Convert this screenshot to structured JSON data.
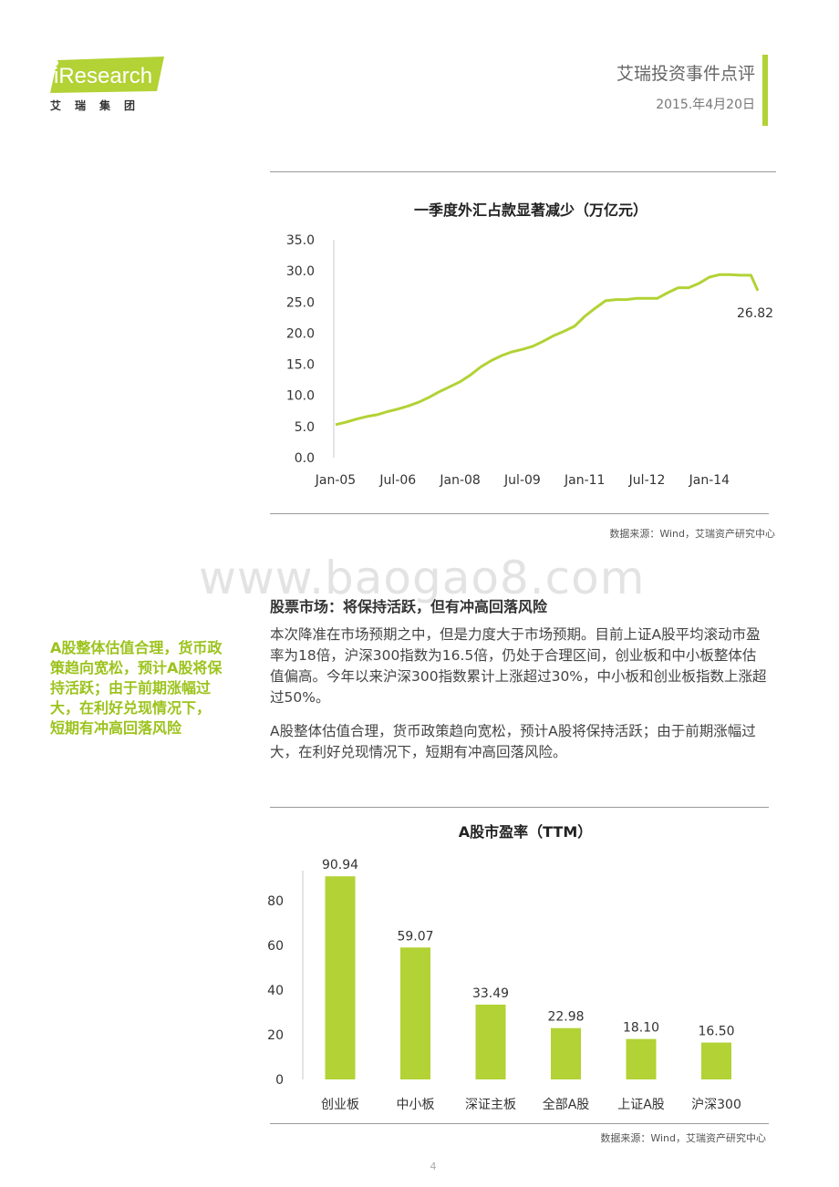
{
  "header": {
    "logo_text": "iResearch",
    "logo_sub": "艾瑞集团",
    "doc_title": "艾瑞投资事件点评",
    "date": "2015.年4月20日"
  },
  "watermark": "www.baogao8.com",
  "section": {
    "heading": "股票市场：将保持活跃，但有冲高回落风险",
    "para1": "本次降准在市场预期之中，但是力度大于市场预期。目前上证A股平均滚动市盈率为18倍，沪深300指数为16.5倍，仍处于合理区间，创业板和中小板整体估值偏高。今年以来沪深300指数累计上涨超过30%，中小板和创业板指数上涨超过50%。",
    "para2": "A股整体估值合理，货币政策趋向宽松，预计A股将保持活跃；由于前期涨幅过大，在利好兑现情况下，短期有冲高回落风险。",
    "sidebar": "A股整体估值合理，货币政策趋向宽松，预计A股将保持活跃；由于前期涨幅过大，在利好兑现情况下，短期有冲高回落风险"
  },
  "page_number": "4",
  "colors": {
    "accent": "#b2d235",
    "sidebar_text": "#9cc31c"
  },
  "chart_data": [
    {
      "type": "line",
      "title": "一季度外汇占款显著减少（万亿元）",
      "source": "数据来源：Wind，艾瑞资产研究中心",
      "ylim": [
        0,
        35
      ],
      "yticks": [
        "35.0",
        "30.0",
        "25.0",
        "20.0",
        "15.0",
        "10.0",
        "5.0",
        "0.0"
      ],
      "x_tick_labels": [
        "Jan-05",
        "Jul-06",
        "Jan-08",
        "Jul-09",
        "Jan-11",
        "Jul-12",
        "Jan-14"
      ],
      "x": [
        "2005-01",
        "2005-04",
        "2005-07",
        "2005-10",
        "2006-01",
        "2006-04",
        "2006-07",
        "2006-10",
        "2007-01",
        "2007-04",
        "2007-07",
        "2007-10",
        "2008-01",
        "2008-04",
        "2008-07",
        "2008-10",
        "2009-01",
        "2009-04",
        "2009-07",
        "2009-10",
        "2010-01",
        "2010-04",
        "2010-07",
        "2010-10",
        "2011-01",
        "2011-04",
        "2011-07",
        "2011-10",
        "2012-01",
        "2012-04",
        "2012-07",
        "2012-10",
        "2013-01",
        "2013-04",
        "2013-07",
        "2013-10",
        "2014-01",
        "2014-04",
        "2014-07",
        "2014-10",
        "2015-01",
        "2015-03"
      ],
      "values": [
        5.3,
        5.7,
        6.2,
        6.6,
        6.9,
        7.4,
        7.8,
        8.3,
        8.9,
        9.7,
        10.6,
        11.4,
        12.2,
        13.3,
        14.6,
        15.6,
        16.4,
        17.0,
        17.4,
        17.9,
        18.7,
        19.6,
        20.3,
        21.1,
        22.7,
        24.0,
        25.2,
        25.4,
        25.4,
        25.6,
        25.6,
        25.6,
        26.5,
        27.3,
        27.3,
        28.0,
        29.0,
        29.4,
        29.4,
        29.3,
        29.3,
        26.82
      ],
      "annotation": "26.82",
      "series_color": "#b2d235"
    },
    {
      "type": "bar",
      "title": "A股市盈率（TTM）",
      "source": "数据来源：Wind，艾瑞资产研究中心",
      "ylim": [
        0,
        100
      ],
      "yticks": [
        "80",
        "60",
        "40",
        "20",
        "0"
      ],
      "categories": [
        "创业板",
        "中小板",
        "深证主板",
        "全部A股",
        "上证A股",
        "沪深300"
      ],
      "values": [
        90.94,
        59.07,
        33.49,
        22.98,
        18.1,
        16.5
      ],
      "value_labels": [
        "90.94",
        "59.07",
        "33.49",
        "22.98",
        "18.10",
        "16.50"
      ],
      "series_color": "#b2d235"
    }
  ]
}
